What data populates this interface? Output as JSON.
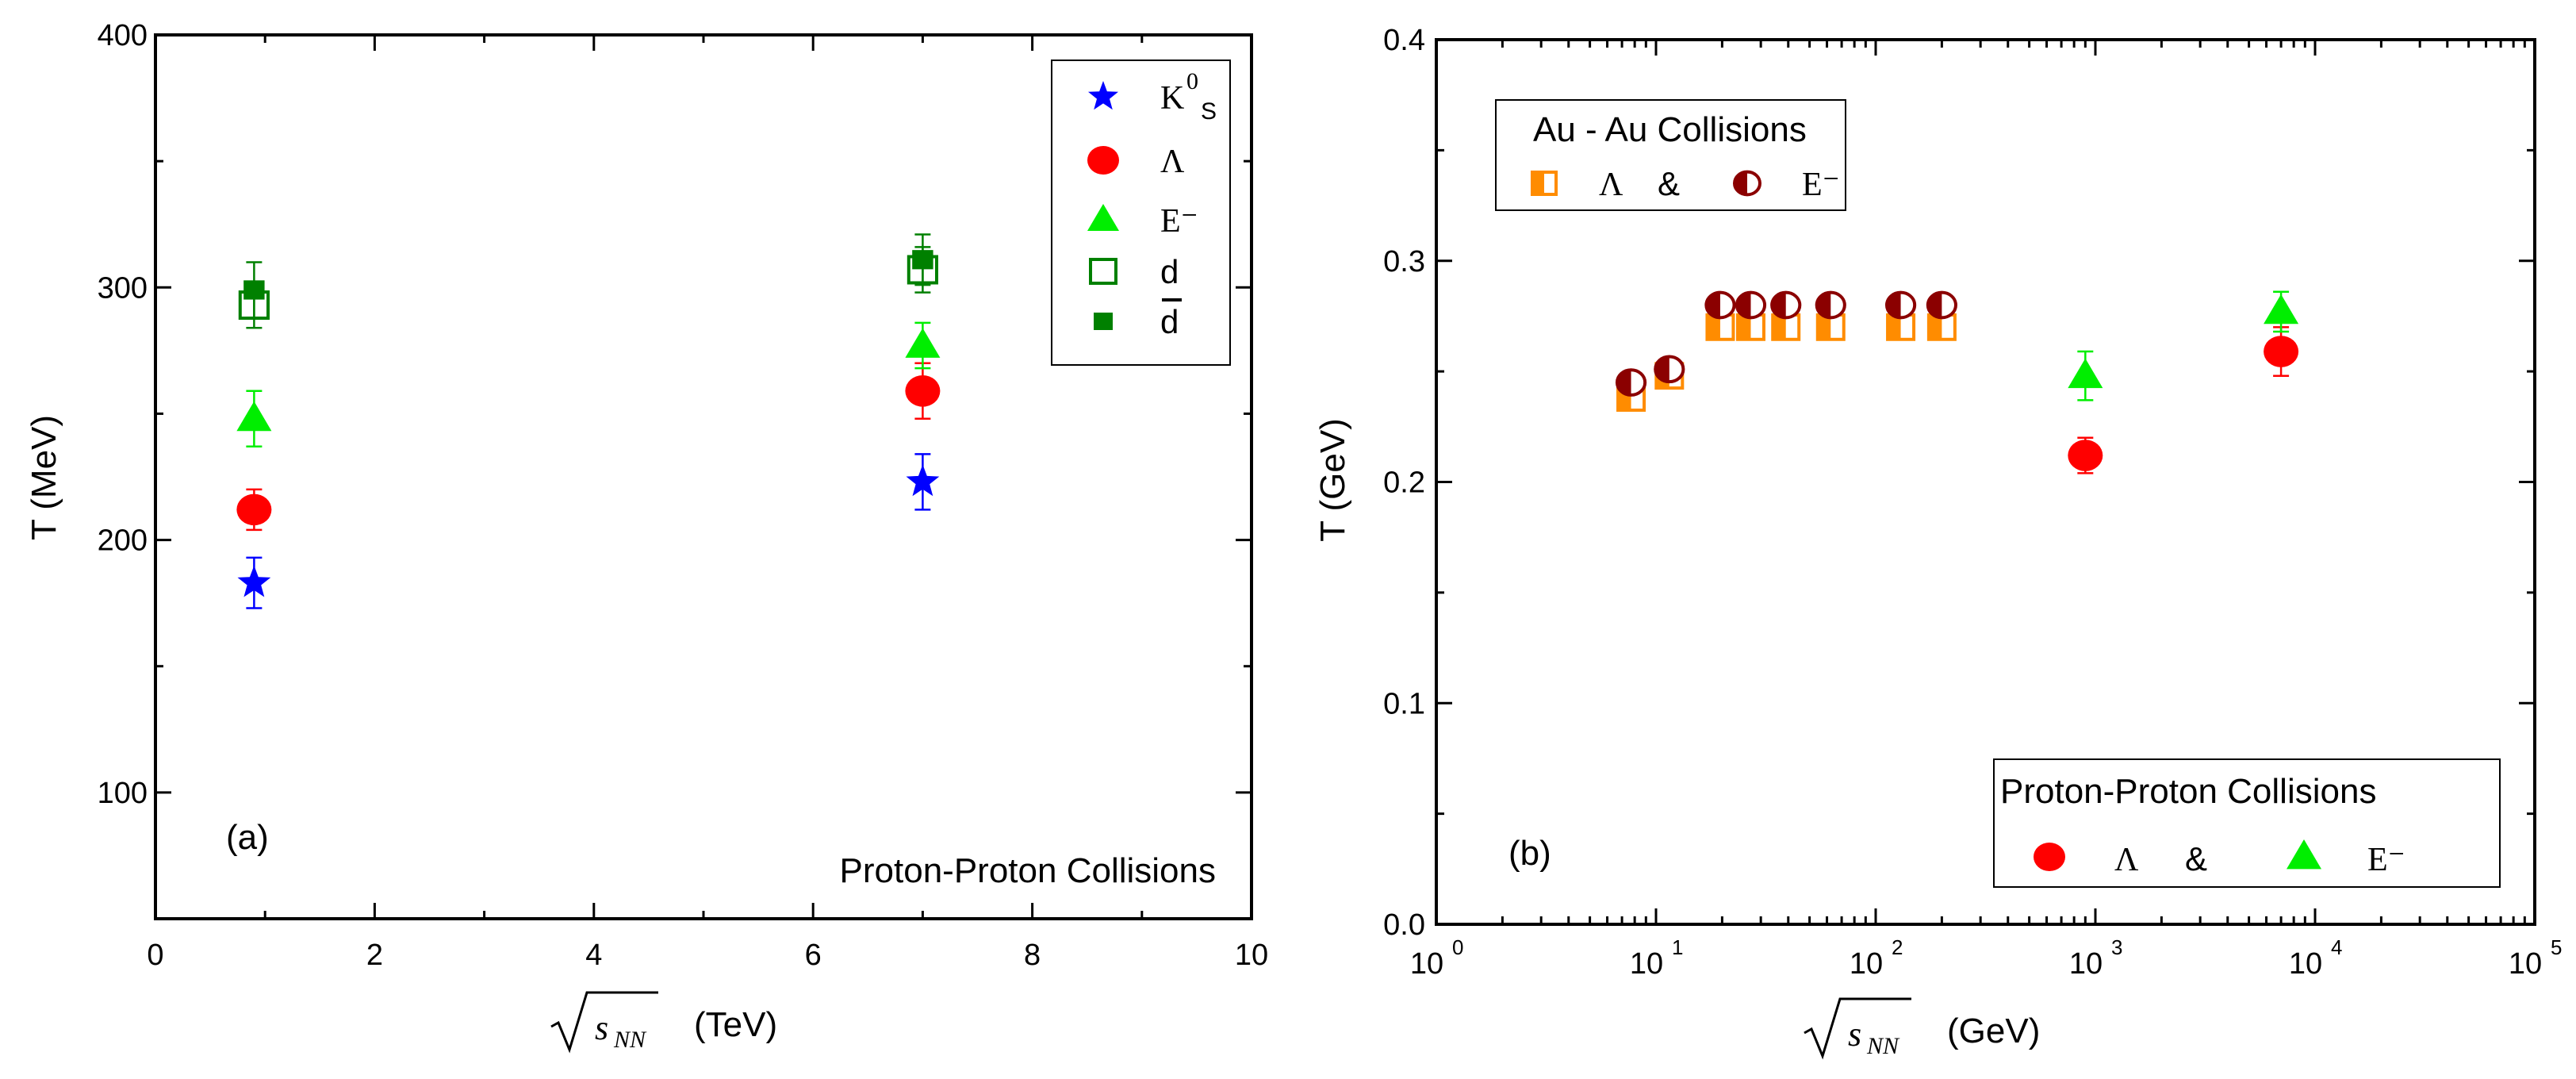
{
  "chart_data": [
    {
      "type": "scatter",
      "panel_label": "(a)",
      "annotation": "Proton-Proton Collisions",
      "xlabel_sqrt": "s",
      "xlabel_sub": "NN",
      "xlabel_unit": "(TeV)",
      "ylabel": "T (MeV)",
      "xlim": [
        0,
        10
      ],
      "ylim": [
        50,
        400
      ],
      "xticks": [
        0,
        2,
        4,
        6,
        8,
        10
      ],
      "yticks": [
        100,
        200,
        300,
        400
      ],
      "legend_placement": "top-right",
      "series": [
        {
          "name": "K0S",
          "label_main": "K",
          "label_sup": "0",
          "label_sub": "S",
          "marker": "star",
          "color": "#0000ff",
          "x": [
            0.9,
            7
          ],
          "y": [
            183,
            223
          ],
          "err": [
            10,
            11
          ]
        },
        {
          "name": "Λ",
          "label_main": "Λ",
          "marker": "circle",
          "color": "#ff0000",
          "x": [
            0.9,
            7
          ],
          "y": [
            212,
            259
          ],
          "err": [
            8,
            11
          ]
        },
        {
          "name": "E⁻",
          "label_main": "E⁻",
          "marker": "triangle",
          "color": "#00ee00",
          "x": [
            0.9,
            7
          ],
          "y": [
            248,
            277
          ],
          "err": [
            11,
            9
          ]
        },
        {
          "name": "d",
          "label_main": "d",
          "marker": "open-square",
          "color": "#008000",
          "x": [
            0.9,
            7
          ],
          "y": [
            293,
            307
          ],
          "err": [
            9,
            9
          ]
        },
        {
          "name": "d̄",
          "label_main": "d",
          "overline": true,
          "marker": "filled-square",
          "color": "#008000",
          "x": [
            0.9,
            7
          ],
          "y": [
            299,
            311
          ],
          "err": [
            11,
            10
          ]
        }
      ]
    },
    {
      "type": "scatter",
      "panel_label": "(b)",
      "xlabel_sqrt": "s",
      "xlabel_sub": "NN",
      "xlabel_unit": "(GeV)",
      "ylabel": "T (GeV)",
      "xscale": "log",
      "xlim": [
        1,
        100000
      ],
      "ylim": [
        0,
        0.4
      ],
      "xticks_exp": [
        "0",
        "1",
        "2",
        "3",
        "4",
        "5"
      ],
      "xticks_base": "10",
      "yticks": [
        "0.0",
        "0.1",
        "0.2",
        "0.3",
        "0.4"
      ],
      "legends": [
        {
          "title": "Au - Au Collisions",
          "placement": "top-left",
          "amp": "&"
        },
        {
          "title": "Proton-Proton Collisions",
          "placement": "bottom-right",
          "amp": "&"
        }
      ],
      "series": [
        {
          "name": "Au-Au Λ",
          "label_main": "Λ",
          "group": 0,
          "marker": "half-square",
          "color": "#ff8c00",
          "x": [
            7.7,
            11.5,
            19.6,
            27,
            39,
            62.4,
            130,
            200
          ],
          "y": [
            0.238,
            0.248,
            0.27,
            0.27,
            0.27,
            0.27,
            0.27,
            0.27
          ],
          "err": [
            0,
            0,
            0,
            0,
            0,
            0,
            0,
            0
          ]
        },
        {
          "name": "Au-Au E⁻",
          "label_main": "E⁻",
          "group": 0,
          "marker": "half-circle",
          "color": "#8b0000",
          "x": [
            7.7,
            11.5,
            19.6,
            27,
            39,
            62.4,
            130,
            200
          ],
          "y": [
            0.245,
            0.251,
            0.28,
            0.28,
            0.28,
            0.28,
            0.28,
            0.28
          ],
          "err": [
            0,
            0,
            0,
            0,
            0,
            0,
            0,
            0
          ]
        },
        {
          "name": "pp Λ",
          "label_main": "Λ",
          "group": 1,
          "marker": "circle",
          "color": "#ff0000",
          "x": [
            900,
            7000
          ],
          "y": [
            0.212,
            0.259
          ],
          "err": [
            0.008,
            0.011
          ]
        },
        {
          "name": "pp E⁻",
          "label_main": "E⁻",
          "group": 1,
          "marker": "triangle",
          "color": "#00ee00",
          "x": [
            900,
            7000
          ],
          "y": [
            0.248,
            0.277
          ],
          "err": [
            0.011,
            0.009
          ]
        }
      ]
    }
  ]
}
